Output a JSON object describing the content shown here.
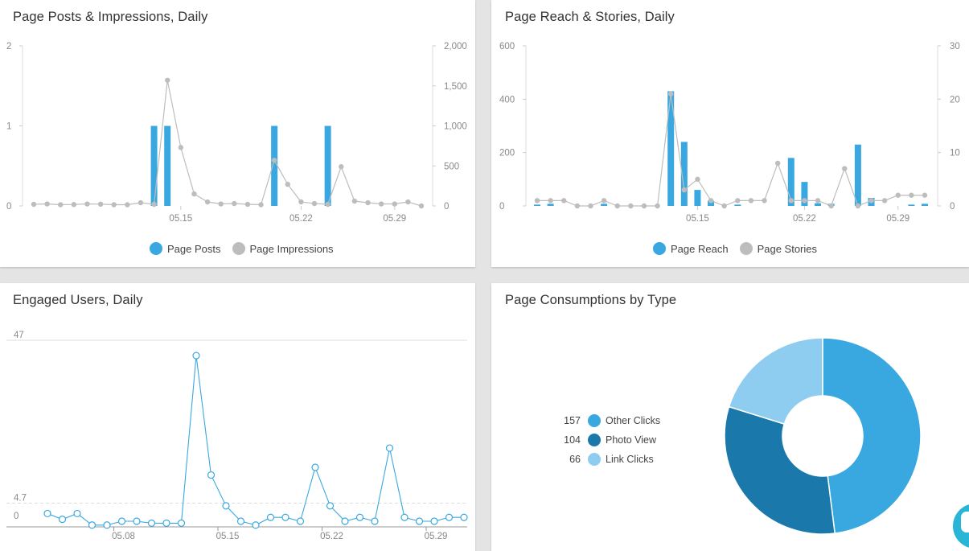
{
  "panels": {
    "posts": {
      "title": "Page Posts & Impressions, Daily",
      "legend": [
        {
          "label": "Page Posts",
          "color": "#3aa8e0"
        },
        {
          "label": "Page Impressions",
          "color": "#bdbdbd"
        }
      ]
    },
    "reach": {
      "title": "Page Reach & Stories, Daily",
      "legend": [
        {
          "label": "Page Reach",
          "color": "#3aa8e0"
        },
        {
          "label": "Page Stories",
          "color": "#bdbdbd"
        }
      ]
    },
    "engaged": {
      "title": "Engaged Users, Daily"
    },
    "consumptions": {
      "title": "Page Consumptions by Type",
      "legend": [
        {
          "value": "157",
          "label": "Other Clicks",
          "color": "#3aa8e0"
        },
        {
          "value": "104",
          "label": "Photo View",
          "color": "#1b78ab"
        },
        {
          "value": "66",
          "label": "Link Clicks",
          "color": "#8ecdef"
        }
      ]
    }
  },
  "chart_data": [
    {
      "type": "bar",
      "title": "Page Posts & Impressions, Daily",
      "x_ticks": [
        "05.15",
        "05.22",
        "05.29"
      ],
      "y_left_ticks": [
        "0",
        "1",
        "2"
      ],
      "y_right_ticks": [
        "0",
        "500",
        "1,000",
        "1,500",
        "2,000"
      ],
      "ylim_left": [
        0,
        2
      ],
      "ylim_right": [
        0,
        2000
      ],
      "series": [
        {
          "name": "Page Posts",
          "type": "bar",
          "axis": "left",
          "color": "#3aa8e0",
          "values": [
            0,
            0,
            0,
            0,
            0,
            0,
            0,
            0,
            0,
            1,
            1,
            0,
            0,
            0,
            0,
            0,
            0,
            0,
            1,
            0,
            0,
            0,
            1,
            0,
            0,
            0,
            0,
            0,
            0,
            0
          ]
        },
        {
          "name": "Page Impressions",
          "type": "line",
          "axis": "right",
          "color": "#bdbdbd",
          "values": [
            20,
            25,
            15,
            18,
            25,
            22,
            15,
            15,
            40,
            20,
            1570,
            730,
            150,
            50,
            25,
            30,
            20,
            15,
            570,
            270,
            50,
            30,
            20,
            490,
            60,
            40,
            25,
            25,
            50,
            0
          ]
        }
      ]
    },
    {
      "type": "bar",
      "title": "Page Reach & Stories, Daily",
      "x_ticks": [
        "05.15",
        "05.22",
        "05.29"
      ],
      "y_left_ticks": [
        "0",
        "200",
        "400",
        "600"
      ],
      "y_right_ticks": [
        "0",
        "10",
        "20",
        "30"
      ],
      "ylim_left": [
        0,
        600
      ],
      "ylim_right": [
        0,
        30
      ],
      "series": [
        {
          "name": "Page Reach",
          "type": "bar",
          "axis": "left",
          "color": "#3aa8e0",
          "values": [
            5,
            8,
            0,
            0,
            0,
            8,
            0,
            0,
            0,
            0,
            430,
            240,
            60,
            20,
            0,
            5,
            0,
            0,
            0,
            180,
            90,
            10,
            8,
            0,
            230,
            30,
            0,
            0,
            5,
            8
          ]
        },
        {
          "name": "Page Stories",
          "type": "line",
          "axis": "right",
          "color": "#bdbdbd",
          "values": [
            1,
            1,
            1,
            0,
            0,
            1,
            0,
            0,
            0,
            0,
            21,
            3,
            5,
            1,
            0,
            1,
            1,
            1,
            8,
            1,
            1,
            1,
            0,
            7,
            0,
            1,
            1,
            2,
            2,
            2
          ]
        }
      ]
    },
    {
      "type": "line",
      "title": "Engaged Users, Daily",
      "x_ticks": [
        "05.08",
        "05.15",
        "05.22",
        "05.29"
      ],
      "y_ticks": [
        "0",
        "4.7",
        "47"
      ],
      "ylim": [
        0,
        47
      ],
      "series": [
        {
          "name": "Engaged Users",
          "color": "#3aa8e0",
          "values": [
            2,
            0.5,
            2,
            -1,
            -1,
            0,
            0,
            -0.5,
            -0.5,
            -0.5,
            43,
            12,
            4,
            0,
            -1,
            1,
            1,
            0,
            14,
            4,
            0,
            1,
            0,
            19,
            1,
            0,
            0,
            1,
            1
          ]
        }
      ]
    },
    {
      "type": "pie",
      "title": "Page Consumptions by Type",
      "labels": [
        "Other Clicks",
        "Photo View",
        "Link Clicks"
      ],
      "values": [
        157,
        104,
        66
      ],
      "colors": [
        "#3aa8e0",
        "#1b78ab",
        "#8ecdef"
      ]
    }
  ]
}
